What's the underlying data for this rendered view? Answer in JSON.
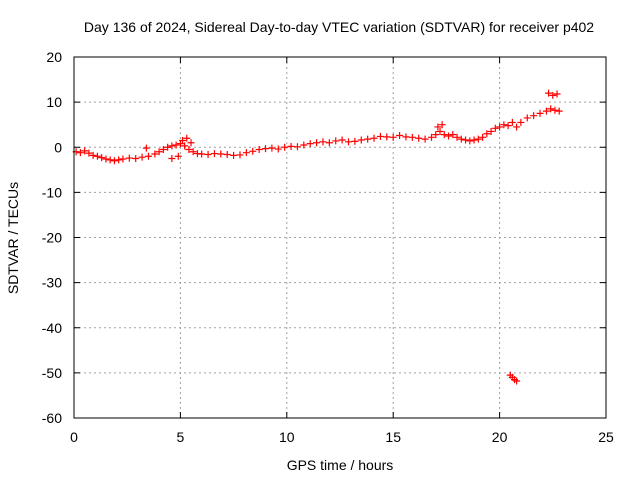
{
  "chart_data": {
    "type": "scatter",
    "title": "Day 136 of 2024, Sidereal Day-to-day VTEC variation (SDTVAR) for receiver p402",
    "xlabel": "GPS time / hours",
    "ylabel": "SDTVAR / TECUs",
    "xlim": [
      0,
      25
    ],
    "ylim": [
      -60,
      20
    ],
    "xticks": [
      0,
      5,
      10,
      15,
      20,
      25
    ],
    "yticks": [
      -60,
      -50,
      -40,
      -30,
      -20,
      -10,
      0,
      10,
      20
    ],
    "grid": true,
    "marker": "+",
    "series": [
      {
        "name": "SDTVAR",
        "color": "#ff0000",
        "x": [
          0.1,
          0.3,
          0.5,
          0.7,
          0.9,
          1.1,
          1.3,
          1.5,
          1.7,
          1.9,
          2.1,
          2.3,
          2.6,
          2.9,
          3.2,
          3.5,
          3.8,
          4.0,
          4.2,
          4.4,
          4.6,
          4.8,
          5.0,
          5.2,
          5.4,
          5.6,
          5.8,
          6.0,
          6.3,
          6.6,
          6.9,
          7.2,
          7.5,
          7.8,
          8.1,
          8.4,
          8.7,
          9.0,
          9.3,
          9.6,
          9.9,
          10.2,
          10.5,
          10.8,
          11.1,
          11.4,
          11.7,
          12.0,
          12.3,
          12.6,
          12.9,
          13.2,
          13.5,
          13.8,
          14.1,
          14.4,
          14.7,
          15.0,
          15.3,
          15.6,
          15.9,
          16.2,
          16.5,
          16.8,
          17.0,
          17.2,
          17.4,
          17.6,
          17.8,
          18.0,
          18.2,
          18.4,
          18.6,
          18.8,
          19.0,
          19.2,
          19.4,
          19.6,
          19.8,
          20.0,
          20.2,
          20.4,
          20.6,
          20.8,
          21.0,
          21.3,
          21.6,
          21.9,
          22.2,
          22.4,
          22.6,
          22.8,
          3.4,
          4.6,
          4.9,
          5.1,
          5.3,
          5.5,
          17.1,
          17.3,
          22.3,
          22.5,
          22.7,
          20.5,
          20.6,
          20.7,
          20.8
        ],
        "y": [
          -1.0,
          -1.2,
          -0.8,
          -1.3,
          -1.8,
          -2.0,
          -2.3,
          -2.6,
          -2.8,
          -3.0,
          -2.8,
          -2.6,
          -2.4,
          -2.5,
          -2.2,
          -2.0,
          -1.5,
          -1.0,
          -0.5,
          0.0,
          0.3,
          0.5,
          0.8,
          0.3,
          -0.5,
          -1.0,
          -1.4,
          -1.5,
          -1.6,
          -1.4,
          -1.5,
          -1.6,
          -1.8,
          -1.7,
          -1.2,
          -0.9,
          -0.5,
          -0.3,
          -0.2,
          -0.4,
          0.0,
          0.2,
          0.1,
          0.5,
          0.8,
          1.0,
          1.2,
          1.0,
          1.4,
          1.6,
          1.2,
          1.3,
          1.6,
          1.8,
          2.0,
          2.4,
          2.3,
          2.2,
          2.6,
          2.3,
          2.2,
          2.0,
          1.8,
          2.2,
          2.8,
          3.5,
          2.8,
          2.5,
          2.8,
          2.2,
          1.8,
          1.6,
          1.4,
          1.6,
          1.8,
          2.2,
          3.0,
          3.5,
          4.2,
          4.5,
          5.0,
          4.8,
          5.5,
          4.5,
          5.5,
          6.5,
          7.0,
          7.5,
          8.0,
          8.5,
          8.2,
          8.0,
          -0.2,
          -2.5,
          -2.0,
          1.5,
          2.0,
          1.0,
          4.5,
          5.0,
          12.0,
          11.5,
          11.8,
          -50.5,
          -51.0,
          -51.5,
          -51.8
        ]
      }
    ]
  }
}
